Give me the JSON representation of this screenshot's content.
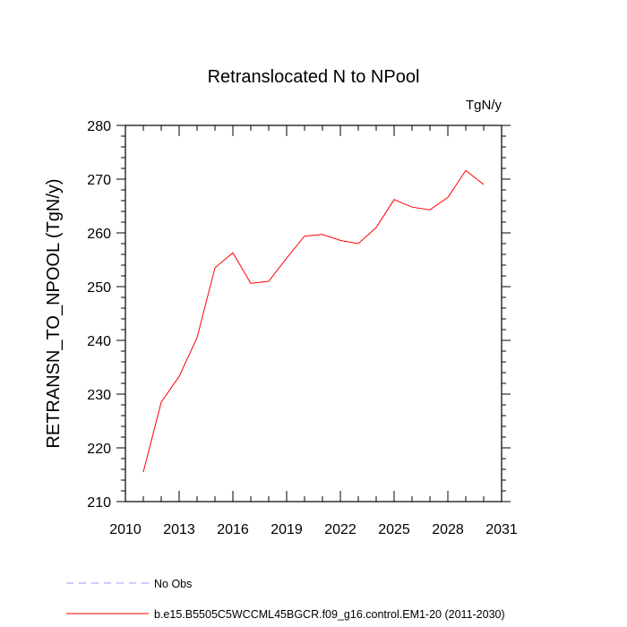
{
  "chart_data": {
    "type": "line",
    "title": "Retranslocated N to NPool",
    "units": "TgN/y",
    "ylabel": "RETRANSN_TO_NPOOL  (TgN/y)",
    "xlabel": "",
    "xlim": [
      2010,
      2031
    ],
    "ylim": [
      210,
      280
    ],
    "xticks": [
      2010,
      2013,
      2016,
      2019,
      2022,
      2025,
      2028,
      2031
    ],
    "yticks": [
      210,
      220,
      230,
      240,
      250,
      260,
      270,
      280
    ],
    "grid": false,
    "legend_position": "bottom-left",
    "series": [
      {
        "name": "b.e15.B5505C5WCCML45BGCR.f09_g16.control.EM1-20 (2011-2030)",
        "color": "#ff0000",
        "style": "solid",
        "x": [
          2011,
          2012,
          2013,
          2014,
          2015,
          2016,
          2017,
          2018,
          2019,
          2020,
          2021,
          2022,
          2023,
          2024,
          2025,
          2026,
          2027,
          2028,
          2029,
          2030
        ],
        "y": [
          215.5,
          228.5,
          233.3,
          240.5,
          253.5,
          256.3,
          250.6,
          251.0,
          255.3,
          259.4,
          259.7,
          258.6,
          258.0,
          261.0,
          266.2,
          264.8,
          264.3,
          266.6,
          271.6,
          269.0
        ]
      },
      {
        "name": "No Obs",
        "color": "#9999ff",
        "style": "dashed",
        "x": [],
        "y": []
      }
    ]
  }
}
